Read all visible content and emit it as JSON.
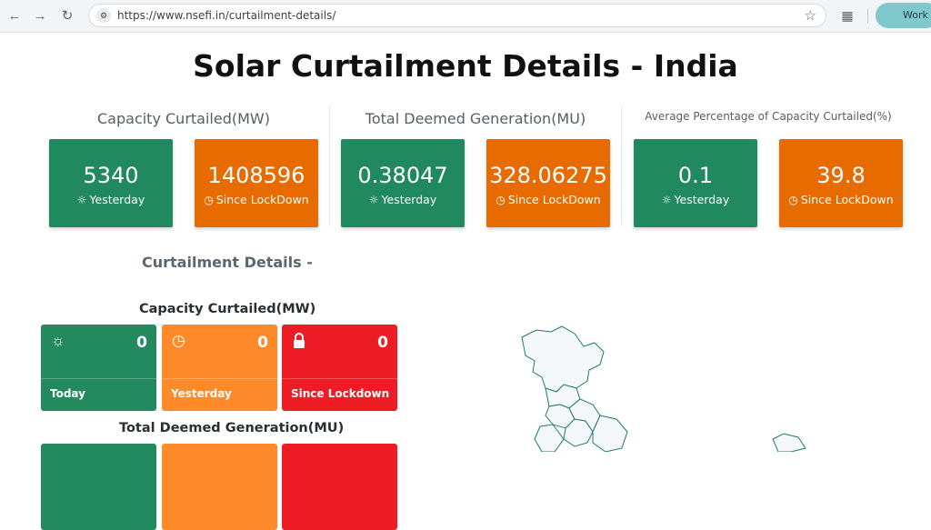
{
  "browser": {
    "url": "https://www.nsefi.in/curtailment-details/",
    "profile_label": "Work"
  },
  "page": {
    "title": "Solar Curtailment Details - India"
  },
  "groups": [
    {
      "title": "Capacity Curtailed(MW)",
      "yesterday_value": "5340",
      "yesterday_label": "Yesterday",
      "lockdown_value": "1408596",
      "lockdown_label": "Since LockDown"
    },
    {
      "title": "Total Deemed Generation(MU)",
      "yesterday_value": "0.38047",
      "yesterday_label": "Yesterday",
      "lockdown_value": "328.06275",
      "lockdown_label": "Since LockDown"
    },
    {
      "title": "Average Percentage of Capacity Curtailed(%)",
      "yesterday_value": "0.1",
      "yesterday_label": "Yesterday",
      "lockdown_value": "39.8",
      "lockdown_label": "Since LockDown"
    }
  ],
  "details": {
    "heading": "Curtailment Details -",
    "capacity_heading": "Capacity Curtailed(MW)",
    "generation_heading": "Total Deemed Generation(MU)",
    "cards": [
      {
        "label": "Today",
        "value": "0",
        "icon": "sun-icon",
        "color": "#23895f"
      },
      {
        "label": "Yesterday",
        "value": "0",
        "icon": "clock-icon",
        "color": "#ff8a2a"
      },
      {
        "label": "Since Lockdown",
        "value": "0",
        "icon": "lock-icon",
        "color": "#ee1c25"
      }
    ]
  },
  "colors": {
    "green": "#21895f",
    "orange": "#e86b00"
  }
}
